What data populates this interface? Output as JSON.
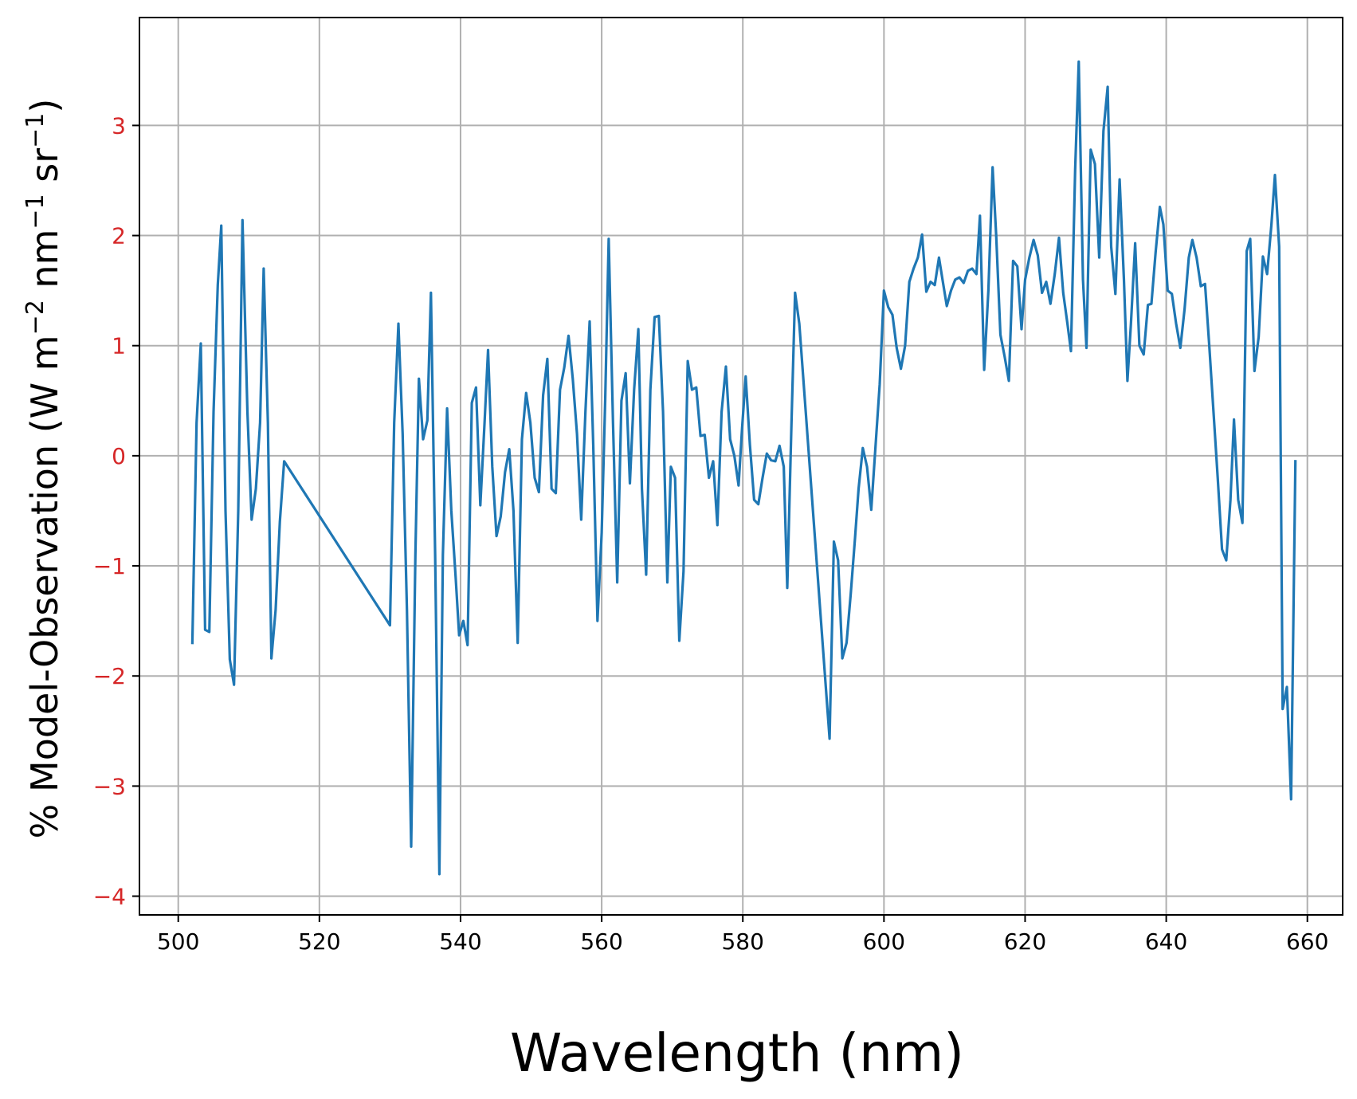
{
  "chart_data": {
    "type": "line",
    "xlabel": "Wavelength (nm)",
    "ylabel_parts": {
      "prefix": "% Model-Observation (W m",
      "exp1": "−2",
      "mid1": " nm",
      "exp2": "−1",
      "mid2": " sr",
      "exp3": "−1",
      "suffix": ")"
    },
    "xlim": [
      494.5,
      665
    ],
    "ylim": [
      -4.17,
      3.98
    ],
    "x_ticks": [
      500,
      520,
      540,
      560,
      580,
      600,
      620,
      640,
      660
    ],
    "x_tick_labels": [
      "500",
      "520",
      "540",
      "560",
      "580",
      "600",
      "620",
      "640",
      "660"
    ],
    "y_ticks": [
      -4,
      -3,
      -2,
      -1,
      0,
      1,
      2,
      3
    ],
    "y_tick_labels": [
      "−4",
      "−3",
      "−2",
      "−1",
      "0",
      "1",
      "2",
      "3"
    ],
    "grid": true,
    "colors": {
      "line": "#1f77b4",
      "y_tick_labels": "#d62728",
      "x_tick_labels": "#000000",
      "grid": "#b0b0b0",
      "axes": "#000000"
    },
    "series": [
      {
        "points": [
          [
            502.0,
            -1.7
          ],
          [
            502.6,
            0.3
          ],
          [
            503.2,
            1.02
          ],
          [
            503.8,
            -1.58
          ],
          [
            504.4,
            -1.6
          ],
          [
            505.0,
            0.4
          ],
          [
            505.6,
            1.55
          ],
          [
            506.1,
            2.09
          ],
          [
            506.7,
            -0.5
          ],
          [
            507.3,
            -1.85
          ],
          [
            507.9,
            -2.08
          ],
          [
            508.5,
            -0.5
          ],
          [
            509.1,
            2.14
          ],
          [
            509.8,
            0.4
          ],
          [
            510.4,
            -0.58
          ],
          [
            511.0,
            -0.3
          ],
          [
            511.6,
            0.3
          ],
          [
            512.1,
            1.7
          ],
          [
            512.7,
            0.3
          ],
          [
            513.2,
            -1.84
          ],
          [
            513.8,
            -1.4
          ],
          [
            514.4,
            -0.6
          ],
          [
            515.0,
            -0.05
          ],
          [
            530.0,
            -1.54
          ],
          [
            530.6,
            0.3
          ],
          [
            531.2,
            1.2
          ],
          [
            531.8,
            0.2
          ],
          [
            532.4,
            -1.4
          ],
          [
            533.0,
            -3.55
          ],
          [
            533.6,
            -0.9
          ],
          [
            534.1,
            0.7
          ],
          [
            534.7,
            0.15
          ],
          [
            535.3,
            0.32
          ],
          [
            535.8,
            1.48
          ],
          [
            536.4,
            -0.9
          ],
          [
            537.0,
            -3.8
          ],
          [
            537.5,
            -0.9
          ],
          [
            538.1,
            0.43
          ],
          [
            538.7,
            -0.5
          ],
          [
            539.3,
            -1.1
          ],
          [
            539.8,
            -1.63
          ],
          [
            540.4,
            -1.5
          ],
          [
            541.0,
            -1.72
          ],
          [
            541.6,
            0.48
          ],
          [
            542.2,
            0.62
          ],
          [
            542.8,
            -0.45
          ],
          [
            543.4,
            0.3
          ],
          [
            543.9,
            0.96
          ],
          [
            544.5,
            -0.1
          ],
          [
            545.1,
            -0.73
          ],
          [
            545.7,
            -0.55
          ],
          [
            546.3,
            -0.15
          ],
          [
            546.9,
            0.06
          ],
          [
            547.5,
            -0.5
          ],
          [
            548.1,
            -1.7
          ],
          [
            548.7,
            0.15
          ],
          [
            549.3,
            0.57
          ],
          [
            549.9,
            0.3
          ],
          [
            550.5,
            -0.2
          ],
          [
            551.1,
            -0.33
          ],
          [
            551.7,
            0.55
          ],
          [
            552.3,
            0.88
          ],
          [
            552.9,
            -0.3
          ],
          [
            553.5,
            -0.34
          ],
          [
            554.1,
            0.6
          ],
          [
            554.7,
            0.8
          ],
          [
            555.3,
            1.09
          ],
          [
            555.9,
            0.7
          ],
          [
            556.5,
            0.2
          ],
          [
            557.1,
            -0.58
          ],
          [
            557.7,
            0.4
          ],
          [
            558.3,
            1.22
          ],
          [
            558.8,
            0.1
          ],
          [
            559.4,
            -1.5
          ],
          [
            560.0,
            -0.7
          ],
          [
            560.5,
            0.5
          ],
          [
            561.0,
            1.97
          ],
          [
            561.6,
            0.3
          ],
          [
            562.2,
            -1.15
          ],
          [
            562.8,
            0.5
          ],
          [
            563.4,
            0.75
          ],
          [
            564.0,
            -0.25
          ],
          [
            564.6,
            0.6
          ],
          [
            565.2,
            1.15
          ],
          [
            565.7,
            -0.3
          ],
          [
            566.3,
            -1.08
          ],
          [
            566.9,
            0.6
          ],
          [
            567.5,
            1.26
          ],
          [
            568.1,
            1.27
          ],
          [
            568.7,
            0.4
          ],
          [
            569.3,
            -1.15
          ],
          [
            569.8,
            -0.1
          ],
          [
            570.4,
            -0.2
          ],
          [
            571.0,
            -1.68
          ],
          [
            571.6,
            -1.05
          ],
          [
            572.2,
            0.86
          ],
          [
            572.8,
            0.6
          ],
          [
            573.4,
            0.62
          ],
          [
            574.0,
            0.18
          ],
          [
            574.6,
            0.19
          ],
          [
            575.2,
            -0.2
          ],
          [
            575.8,
            -0.05
          ],
          [
            576.4,
            -0.63
          ],
          [
            577.0,
            0.4
          ],
          [
            577.6,
            0.81
          ],
          [
            578.2,
            0.15
          ],
          [
            578.8,
            0.0
          ],
          [
            579.4,
            -0.27
          ],
          [
            579.9,
            0.25
          ],
          [
            580.4,
            0.72
          ],
          [
            581.0,
            0.1
          ],
          [
            581.6,
            -0.4
          ],
          [
            582.2,
            -0.44
          ],
          [
            582.8,
            -0.2
          ],
          [
            583.4,
            0.02
          ],
          [
            584.0,
            -0.04
          ],
          [
            584.6,
            -0.05
          ],
          [
            585.2,
            0.09
          ],
          [
            585.8,
            -0.1
          ],
          [
            586.3,
            -1.2
          ],
          [
            586.9,
            0.3
          ],
          [
            587.4,
            1.48
          ],
          [
            588.0,
            1.2
          ],
          [
            592.3,
            -2.57
          ],
          [
            592.9,
            -0.78
          ],
          [
            593.5,
            -0.95
          ],
          [
            594.1,
            -1.84
          ],
          [
            594.7,
            -1.7
          ],
          [
            595.3,
            -1.25
          ],
          [
            595.9,
            -0.75
          ],
          [
            596.4,
            -0.3
          ],
          [
            597.0,
            0.07
          ],
          [
            597.6,
            -0.1
          ],
          [
            598.2,
            -0.49
          ],
          [
            598.8,
            0.08
          ],
          [
            599.4,
            0.65
          ],
          [
            600.0,
            1.5
          ],
          [
            600.6,
            1.35
          ],
          [
            601.2,
            1.28
          ],
          [
            601.8,
            0.98
          ],
          [
            602.4,
            0.79
          ],
          [
            603.0,
            1.0
          ],
          [
            603.6,
            1.58
          ],
          [
            604.2,
            1.7
          ],
          [
            604.8,
            1.8
          ],
          [
            605.4,
            2.01
          ],
          [
            606.0,
            1.49
          ],
          [
            606.6,
            1.58
          ],
          [
            607.2,
            1.55
          ],
          [
            607.8,
            1.8
          ],
          [
            608.3,
            1.6
          ],
          [
            608.9,
            1.36
          ],
          [
            609.5,
            1.5
          ],
          [
            610.1,
            1.6
          ],
          [
            610.7,
            1.62
          ],
          [
            611.3,
            1.57
          ],
          [
            611.9,
            1.68
          ],
          [
            612.5,
            1.7
          ],
          [
            613.1,
            1.65
          ],
          [
            613.6,
            2.18
          ],
          [
            614.2,
            0.78
          ],
          [
            614.8,
            1.5
          ],
          [
            615.4,
            2.62
          ],
          [
            615.9,
            2.0
          ],
          [
            616.5,
            1.1
          ],
          [
            617.1,
            0.9
          ],
          [
            617.7,
            0.68
          ],
          [
            618.3,
            1.77
          ],
          [
            618.9,
            1.72
          ],
          [
            619.5,
            1.15
          ],
          [
            620.0,
            1.6
          ],
          [
            620.6,
            1.8
          ],
          [
            621.2,
            1.96
          ],
          [
            621.8,
            1.82
          ],
          [
            622.4,
            1.48
          ],
          [
            623.0,
            1.58
          ],
          [
            623.6,
            1.38
          ],
          [
            624.2,
            1.65
          ],
          [
            624.8,
            1.98
          ],
          [
            625.4,
            1.48
          ],
          [
            626.0,
            1.2
          ],
          [
            626.5,
            0.95
          ],
          [
            627.1,
            2.6
          ],
          [
            627.6,
            3.58
          ],
          [
            628.2,
            1.6
          ],
          [
            628.7,
            0.98
          ],
          [
            629.3,
            2.78
          ],
          [
            629.9,
            2.65
          ],
          [
            630.5,
            1.8
          ],
          [
            631.1,
            2.95
          ],
          [
            631.7,
            3.35
          ],
          [
            632.2,
            1.9
          ],
          [
            632.8,
            1.47
          ],
          [
            633.4,
            2.51
          ],
          [
            634.0,
            1.6
          ],
          [
            634.5,
            0.68
          ],
          [
            635.0,
            1.2
          ],
          [
            635.6,
            1.93
          ],
          [
            636.2,
            1.0
          ],
          [
            636.8,
            0.92
          ],
          [
            637.4,
            1.37
          ],
          [
            637.9,
            1.38
          ],
          [
            638.5,
            1.85
          ],
          [
            639.1,
            2.26
          ],
          [
            639.6,
            2.1
          ],
          [
            640.2,
            1.5
          ],
          [
            640.8,
            1.47
          ],
          [
            641.4,
            1.2
          ],
          [
            642.0,
            0.98
          ],
          [
            642.6,
            1.33
          ],
          [
            643.2,
            1.8
          ],
          [
            643.7,
            1.96
          ],
          [
            644.3,
            1.8
          ],
          [
            644.9,
            1.54
          ],
          [
            645.5,
            1.56
          ],
          [
            646.1,
            1.0
          ],
          [
            646.7,
            0.4
          ],
          [
            647.3,
            -0.2
          ],
          [
            647.9,
            -0.85
          ],
          [
            648.5,
            -0.95
          ],
          [
            649.1,
            -0.4
          ],
          [
            649.6,
            0.33
          ],
          [
            650.2,
            -0.4
          ],
          [
            650.8,
            -0.61
          ],
          [
            651.4,
            1.86
          ],
          [
            651.9,
            1.97
          ],
          [
            652.5,
            0.77
          ],
          [
            653.1,
            1.08
          ],
          [
            653.7,
            1.81
          ],
          [
            654.3,
            1.65
          ],
          [
            654.9,
            2.1
          ],
          [
            655.4,
            2.55
          ],
          [
            656.0,
            1.9
          ],
          [
            656.5,
            -2.3
          ],
          [
            657.1,
            -2.1
          ],
          [
            657.7,
            -3.12
          ],
          [
            658.3,
            -0.05
          ]
        ]
      }
    ]
  }
}
